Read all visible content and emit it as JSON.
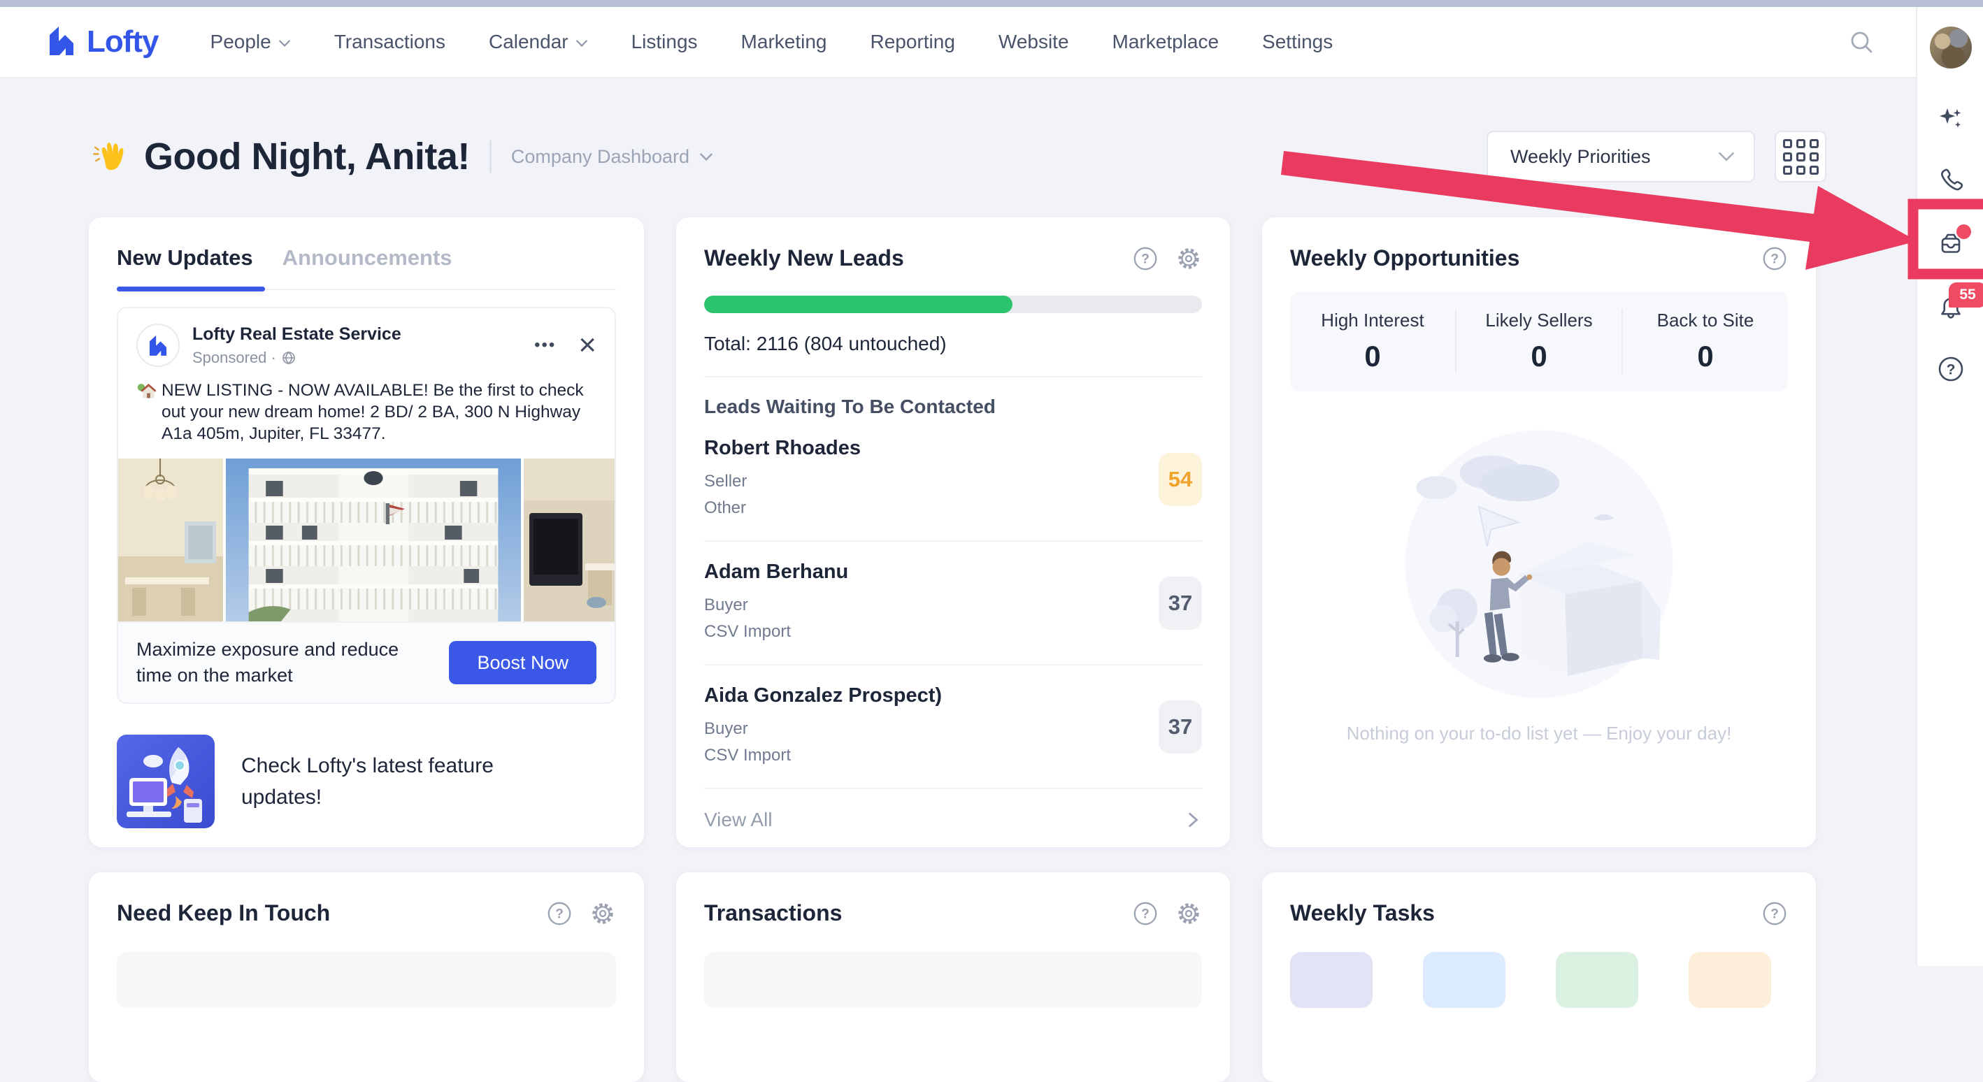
{
  "colors": {
    "brand": "#3356e8",
    "accent": "#3a57e8",
    "green": "#2cc56d",
    "annotation": "#e93a5f",
    "notification": "#ef4b62",
    "score-orange": "#f0a32a"
  },
  "icons": {
    "search": "magnifier",
    "sparkle": "ai-sparkles",
    "phone": "phone-handset",
    "inbox": "mail-tray",
    "bell": "notification-bell",
    "help": "question-circle",
    "settings": "gear",
    "grid": "apps-grid",
    "close": "×",
    "menu": "•••",
    "chevron_down": "⌄",
    "chevron_right": "›",
    "globe": "🌐",
    "house": "🏡",
    "hand": "👋"
  },
  "nav": {
    "brand": "Lofty",
    "items": [
      {
        "label": "People",
        "dropdown": true
      },
      {
        "label": "Transactions",
        "dropdown": false
      },
      {
        "label": "Calendar",
        "dropdown": true
      },
      {
        "label": "Listings",
        "dropdown": false
      },
      {
        "label": "Marketing",
        "dropdown": false
      },
      {
        "label": "Reporting",
        "dropdown": false
      },
      {
        "label": "Website",
        "dropdown": false
      },
      {
        "label": "Marketplace",
        "dropdown": false
      },
      {
        "label": "Settings",
        "dropdown": false
      }
    ]
  },
  "header": {
    "emoji": "👋",
    "greeting": "Good Night, Anita!",
    "dashboard_selector": "Company Dashboard",
    "view_selector": "Weekly Priorities"
  },
  "rail": {
    "notification_count": "55"
  },
  "cards": {
    "new_updates": {
      "tabs": [
        "New Updates",
        "Announcements"
      ],
      "post": {
        "author": "Lofty Real Estate Service",
        "meta": "Sponsored ·",
        "menu": "•••",
        "dismiss": "×",
        "body_emoji": "🏡",
        "body": "NEW LISTING - NOW AVAILABLE! Be the first to check out your new dream home! 2 BD/ 2 BA, 300 N Highway A1a 405m, Jupiter, FL 33477.",
        "footer_text": "Maximize exposure and reduce time on the market",
        "cta": "Boost Now"
      },
      "feature_banner": "Check Lofty's latest feature updates!"
    },
    "weekly_new_leads": {
      "title": "Weekly New Leads",
      "progress": {
        "pct": 62
      },
      "total_label": "Total: 2116 (804 untouched)",
      "section_title": "Leads Waiting To Be Contacted",
      "leads": [
        {
          "name": "Robert Rhoades",
          "type": "Seller",
          "source": "Other",
          "score": "54",
          "score_style": "orange"
        },
        {
          "name": "Adam Berhanu",
          "type": "Buyer",
          "source": "CSV Import",
          "score": "37",
          "score_style": "grey"
        },
        {
          "name": "Aida Gonzalez Prospect)",
          "type": "Buyer",
          "source": "CSV Import",
          "score": "37",
          "score_style": "grey"
        }
      ],
      "view_all": "View All"
    },
    "weekly_opportunities": {
      "title": "Weekly Opportunities",
      "stats": [
        {
          "label": "High Interest",
          "value": "0"
        },
        {
          "label": "Likely Sellers",
          "value": "0"
        },
        {
          "label": "Back to Site",
          "value": "0"
        }
      ],
      "empty_text": "Nothing on your to-do list yet — Enjoy your day!"
    },
    "need_keep_in_touch": {
      "title": "Need Keep In Touch"
    },
    "transactions": {
      "title": "Transactions"
    },
    "weekly_tasks": {
      "title": "Weekly Tasks",
      "pill_colors": [
        "#e3e3f6",
        "#dbeafd",
        "#daf1e2",
        "#fdeeda"
      ]
    }
  }
}
